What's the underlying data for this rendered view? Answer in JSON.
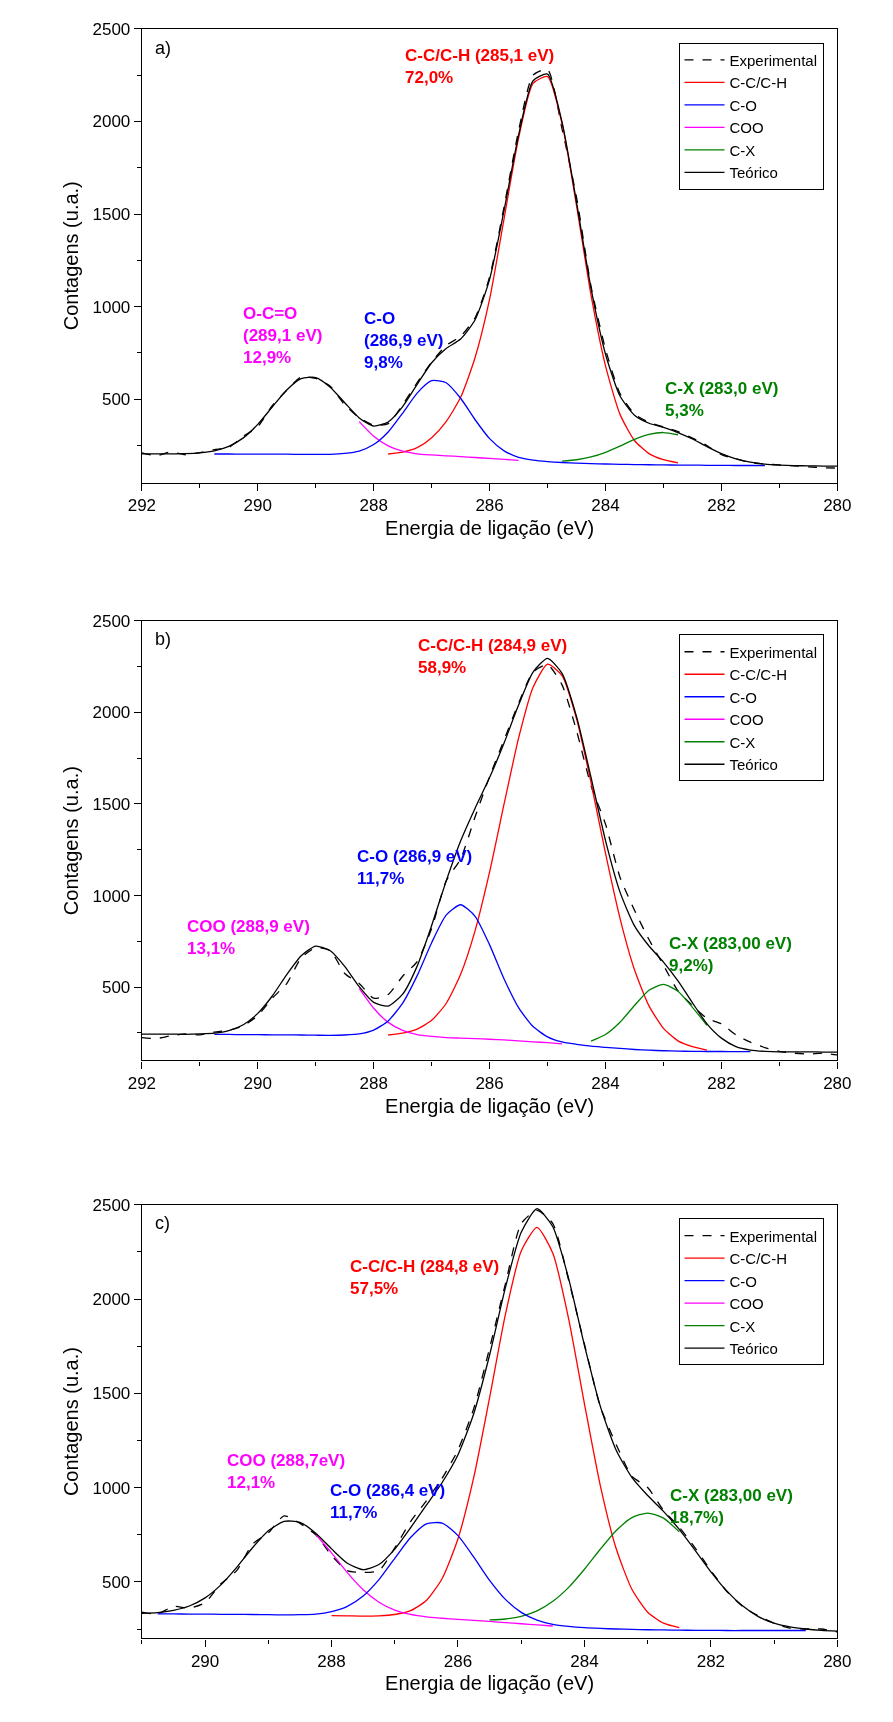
{
  "chart_data": [
    {
      "type": "line",
      "xlabel": "Energia de ligação (eV)",
      "ylabel": "Contagens (u.a.)",
      "xlim": [
        292,
        280
      ],
      "xticks": [
        292,
        290,
        288,
        286,
        284,
        282,
        280
      ],
      "ylim": [
        50,
        2500
      ],
      "yticks": [
        500,
        1000,
        1500,
        2000,
        2500
      ],
      "legend": "top right",
      "x": [
        292,
        291.75,
        291.5,
        291.25,
        291,
        290.75,
        290.5,
        290.25,
        290,
        289.75,
        289.5,
        289.25,
        289,
        288.75,
        288.5,
        288.25,
        288,
        287.75,
        287.5,
        287.25,
        287,
        286.75,
        286.5,
        286.25,
        286,
        285.75,
        285.5,
        285.25,
        285,
        284.75,
        284.5,
        284.25,
        284,
        283.75,
        283.5,
        283.25,
        283,
        282.75,
        282.5,
        282.25,
        282,
        281.75,
        281.5,
        281.25,
        281,
        280.75,
        280.5,
        280.25,
        280
      ],
      "annotations": [
        "a)",
        "C-C/C-H (285,1 eV)\n72,0%",
        "C-O\n(286,9 eV)\n9,8%",
        "O-C=O\n(289,1 eV)\n12,9%",
        "C-X (283,0 eV)\n5,3%"
      ],
      "series": [
        {
          "name": "Experimental",
          "color": "#000000",
          "line_style": "dashed",
          "values": [
            210,
            195,
            215,
            200,
            212,
            228,
            240,
            300,
            352,
            465,
            548,
            620,
            612,
            570,
            470,
            400,
            360,
            368,
            470,
            590,
            700,
            790,
            840,
            940,
            1160,
            1540,
            1950,
            2250,
            2280,
            1960,
            1590,
            1110,
            770,
            530,
            420,
            375,
            350,
            325,
            290,
            250,
            200,
            178,
            158,
            150,
            145,
            140,
            135,
            130,
            128
          ]
        },
        {
          "name": "C-C/C-H",
          "color": "#ff0000",
          "values": [
            null,
            null,
            null,
            null,
            null,
            null,
            null,
            null,
            null,
            null,
            null,
            null,
            null,
            null,
            null,
            null,
            null,
            204,
            214,
            238,
            292,
            379,
            510,
            725,
            1040,
            1475,
            1910,
            2206,
            2242,
            1988,
            1545,
            1062,
            680,
            418,
            277,
            206,
            173,
            156,
            null,
            null,
            null,
            null,
            null,
            null,
            null,
            null,
            null,
            null,
            null
          ]
        },
        {
          "name": "C-O",
          "color": "#0000ff",
          "values": [
            null,
            null,
            null,
            null,
            null,
            204,
            204,
            203,
            203,
            203,
            203,
            202,
            202,
            202,
            207,
            220,
            255,
            323,
            425,
            533,
            600,
            589,
            505,
            389,
            287,
            221,
            186,
            171,
            163,
            158,
            155,
            152,
            150,
            148,
            147,
            146,
            145,
            144,
            144,
            143,
            143,
            142,
            142,
            141,
            null,
            null,
            null,
            null,
            null
          ]
        },
        {
          "name": "COO",
          "color": "#ff00ff",
          "values": [
            null,
            null,
            null,
            null,
            null,
            null,
            null,
            null,
            null,
            null,
            null,
            null,
            null,
            null,
            null,
            379,
            300,
            248,
            219,
            205,
            199,
            194,
            190,
            185,
            180,
            175,
            170,
            null,
            null,
            null,
            null,
            null,
            null,
            null,
            null,
            null,
            null,
            null,
            null,
            null,
            null,
            null,
            null,
            null,
            null,
            null,
            null,
            null,
            null
          ]
        },
        {
          "name": "C-X",
          "color": "#008000",
          "values": [
            null,
            null,
            null,
            null,
            null,
            null,
            null,
            null,
            null,
            null,
            null,
            null,
            null,
            null,
            null,
            null,
            null,
            null,
            null,
            null,
            null,
            null,
            null,
            null,
            null,
            null,
            null,
            null,
            null,
            166,
            173,
            188,
            213,
            247,
            283,
            310,
            320,
            308,
            null,
            null,
            null,
            null,
            null,
            null,
            null,
            null,
            null,
            null,
            null
          ]
        },
        {
          "name": "Teórico",
          "color": "#000000",
          "values": [
            205,
            205,
            205,
            206,
            210,
            221,
            245,
            291,
            364,
            458,
            550,
            611,
            617,
            565,
            481,
            399,
            355,
            377,
            460,
            580,
            697,
            774,
            825,
            929,
            1147,
            1521,
            1926,
            2220,
            2256,
            1996,
            1563,
            1098,
            743,
            517,
            413,
            370,
            348,
            320,
            285,
            244,
            206,
            178,
            160,
            149,
            144,
            141,
            140,
            139,
            138
          ]
        }
      ]
    },
    {
      "type": "line",
      "xlabel": "Energia de ligação (eV)",
      "ylabel": "Contagens (u.a.)",
      "xlim": [
        292,
        280
      ],
      "xticks": [
        292,
        290,
        288,
        286,
        284,
        282,
        280
      ],
      "ylim": [
        100,
        2500
      ],
      "yticks": [
        500,
        1000,
        1500,
        2000,
        2500
      ],
      "legend": "top right",
      "x": [
        292,
        291.75,
        291.5,
        291.25,
        291,
        290.75,
        290.5,
        290.25,
        290,
        289.75,
        289.5,
        289.25,
        289,
        288.75,
        288.5,
        288.25,
        288,
        287.75,
        287.5,
        287.25,
        287,
        286.75,
        286.5,
        286.25,
        286,
        285.75,
        285.5,
        285.25,
        285,
        284.75,
        284.5,
        284.25,
        284,
        283.75,
        283.5,
        283.25,
        283,
        282.75,
        282.5,
        282.25,
        282,
        281.75,
        281.5,
        281.25,
        281,
        280.75,
        280.5,
        280.25,
        280
      ],
      "annotations": [
        "b)",
        "C-C/C-H (284,9 eV)\n58,9%",
        "C-O (286,9 eV)\n11,7%",
        "COO (288,9 eV)\n13,1%",
        "C-X (283,00 eV)\n9,2%)"
      ],
      "series": [
        {
          "name": "Experimental",
          "color": "#000000",
          "line_style": "dashed",
          "values": [
            225,
            220,
            235,
            245,
            240,
            255,
            265,
            290,
            345,
            440,
            520,
            660,
            715,
            700,
            575,
            520,
            440,
            460,
            560,
            640,
            820,
            1080,
            1200,
            1430,
            1650,
            1850,
            2050,
            2220,
            2260,
            2150,
            1900,
            1600,
            1390,
            1100,
            920,
            760,
            620,
            480,
            400,
            330,
            300,
            240,
            200,
            170,
            150,
            140,
            135,
            140,
            130
          ]
        },
        {
          "name": "C-C/C-H",
          "color": "#ff0000",
          "values": [
            null,
            null,
            null,
            null,
            null,
            null,
            null,
            null,
            null,
            null,
            null,
            null,
            null,
            null,
            null,
            null,
            null,
            239,
            249,
            271,
            319,
            411,
            570,
            809,
            1129,
            1500,
            1859,
            2137,
            2263,
            2201,
            1965,
            1617,
            1230,
            876,
            595,
            398,
            275,
            207,
            175,
            157,
            null,
            null,
            null,
            null,
            null,
            null,
            null,
            null,
            null
          ]
        },
        {
          "name": "C-O",
          "color": "#0000ff",
          "values": [
            null,
            null,
            null,
            null,
            null,
            242,
            242,
            241,
            241,
            240,
            240,
            239,
            238,
            237,
            239,
            245,
            266,
            316,
            413,
            563,
            743,
            893,
            950,
            887,
            731,
            545,
            388,
            285,
            229,
            201,
            188,
            178,
            172,
            166,
            160,
            156,
            153,
            151,
            150,
            149,
            149,
            148,
            148,
            null,
            null,
            null,
            null,
            null,
            null
          ]
        },
        {
          "name": "COO",
          "color": "#ff00ff",
          "values": [
            null,
            null,
            null,
            null,
            null,
            null,
            null,
            null,
            null,
            null,
            null,
            null,
            null,
            null,
            null,
            493,
            385,
            308,
            264,
            241,
            231,
            225,
            222,
            219,
            216,
            212,
            207,
            202,
            197,
            191,
            null,
            null,
            null,
            null,
            null,
            null,
            null,
            null,
            null,
            null,
            null,
            null,
            null,
            null,
            null,
            null,
            null,
            null,
            null
          ]
        },
        {
          "name": "C-X",
          "color": "#008000",
          "values": [
            null,
            null,
            null,
            null,
            null,
            null,
            null,
            null,
            null,
            null,
            null,
            null,
            null,
            null,
            null,
            null,
            null,
            null,
            null,
            null,
            null,
            null,
            null,
            null,
            null,
            null,
            null,
            null,
            null,
            null,
            null,
            206,
            242,
            309,
            400,
            483,
            515,
            478,
            390,
            292,
            null,
            null,
            null,
            null,
            null,
            null,
            null,
            null,
            null
          ]
        },
        {
          "name": "Teórico",
          "color": "#000000",
          "values": [
            244,
            244,
            244,
            243,
            245,
            249,
            263,
            295,
            357,
            452,
            569,
            672,
            724,
            699,
            614,
            503,
            417,
            397,
            462,
            615,
            837,
            1079,
            1298,
            1477,
            1644,
            1833,
            2040,
            2220,
            2295,
            2213,
            1977,
            1645,
            1300,
            1019,
            835,
            725,
            637,
            534,
            415,
            300,
            222,
            176,
            157,
            150,
            147,
            147,
            147,
            146,
            146
          ]
        }
      ]
    },
    {
      "type": "line",
      "xlabel": "Energia de ligação (eV)",
      "ylabel": "Contagens (u.a.)",
      "xlim": [
        291,
        280
      ],
      "xticks": [
        290,
        288,
        286,
        284,
        282,
        280
      ],
      "ylim": [
        200,
        2500
      ],
      "yticks": [
        500,
        1000,
        1500,
        2000,
        2500
      ],
      "legend": "top right",
      "x": [
        291,
        290.75,
        290.5,
        290.25,
        290,
        289.75,
        289.5,
        289.25,
        289,
        288.75,
        288.5,
        288.25,
        288,
        287.75,
        287.5,
        287.25,
        287,
        286.75,
        286.5,
        286.25,
        286,
        285.75,
        285.5,
        285.25,
        285,
        284.75,
        284.5,
        284.25,
        284,
        283.75,
        283.5,
        283.25,
        283,
        282.75,
        282.5,
        282.25,
        282,
        281.75,
        281.5,
        281.25,
        281,
        280.75,
        280.5,
        280.25,
        280
      ],
      "annotations": [
        "c)",
        "C-C/C-H (284,8 eV)\n57,5%",
        "C-O (286,4 eV)\n11,7%",
        "COO (288,7eV)\n12,1%",
        "C-X (283,00 eV)\n18,7%)"
      ],
      "series": [
        {
          "name": "Experimental",
          "color": "#000000",
          "line_style": "dashed",
          "values": [
            340,
            330,
            370,
            360,
            390,
            490,
            560,
            700,
            760,
            850,
            810,
            750,
            640,
            560,
            550,
            560,
            680,
            820,
            930,
            1050,
            1200,
            1420,
            1740,
            2080,
            2400,
            2470,
            2400,
            2100,
            1760,
            1430,
            1230,
            1060,
            1000,
            880,
            790,
            680,
            560,
            450,
            370,
            320,
            280,
            255,
            250,
            250,
            235
          ]
        },
        {
          "name": "C-C/C-H",
          "color": "#ff0000",
          "values": [
            null,
            null,
            null,
            null,
            null,
            null,
            null,
            null,
            null,
            null,
            null,
            null,
            321,
            320,
            318,
            320,
            327,
            347,
            401,
            518,
            729,
            1055,
            1477,
            1918,
            2255,
            2380,
            2243,
            1895,
            1444,
            1012,
            678,
            461,
            339,
            281,
            257,
            null,
            null,
            null,
            null,
            null,
            null,
            null,
            null,
            null,
            null
          ]
        },
        {
          "name": "C-O",
          "color": "#0000ff",
          "values": [
            null,
            330,
            330,
            329,
            329,
            328,
            328,
            327,
            326,
            325,
            326,
            329,
            342,
            370,
            425,
            512,
            625,
            735,
            808,
            812,
            745,
            631,
            508,
            407,
            338,
            297,
            275,
            264,
            257,
            253,
            250,
            248,
            246,
            245,
            244,
            243,
            243,
            242,
            242,
            242,
            242,
            242,
            242,
            null,
            null
          ]
        },
        {
          "name": "COO",
          "color": "#ff00ff",
          "values": [
            null,
            null,
            null,
            null,
            null,
            null,
            null,
            null,
            null,
            null,
            null,
            751,
            654,
            549,
            458,
            392,
            350,
            327,
            314,
            307,
            301,
            296,
            290,
            284,
            278,
            272,
            266,
            null,
            null,
            null,
            null,
            null,
            null,
            null,
            null,
            null,
            null,
            null,
            null,
            null,
            null,
            null,
            null,
            null,
            null
          ]
        },
        {
          "name": "C-X",
          "color": "#008000",
          "values": [
            null,
            null,
            null,
            null,
            null,
            null,
            null,
            null,
            null,
            null,
            null,
            null,
            null,
            null,
            null,
            null,
            null,
            null,
            null,
            null,
            null,
            null,
            298,
            303,
            317,
            346,
            397,
            471,
            567,
            673,
            771,
            841,
            865,
            838,
            765,
            null,
            null,
            null,
            null,
            null,
            null,
            null,
            null,
            null,
            null
          ]
        },
        {
          "name": "Teórico",
          "color": "#000000",
          "values": [
            333,
            337,
            349,
            372,
            415,
            484,
            577,
            681,
            771,
            821,
            816,
            758,
            675,
            599,
            565,
            592,
            674,
            787,
            907,
            1027,
            1174,
            1393,
            1703,
            2060,
            2354,
            2479,
            2383,
            2108,
            1754,
            1432,
            1199,
            1054,
            958,
            874,
            778,
            667,
            553,
            452,
            373,
            316,
            281,
            261,
            250,
            243,
            239
          ]
        }
      ]
    }
  ]
}
